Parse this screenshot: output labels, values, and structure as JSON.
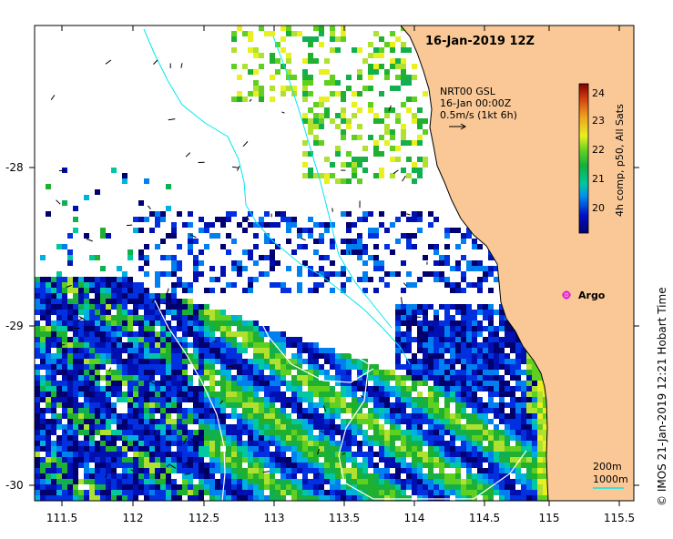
{
  "map": {
    "title": "16-Jan-2019 12Z",
    "current_annotation": {
      "line1": "NRT00 GSL",
      "line2": "16-Jan 00:00Z",
      "line3": "0.5m/s (1kt 6h)"
    },
    "colorbar": {
      "label": "4h comp, p50, All Sats",
      "ticks": [
        "20",
        "21",
        "22",
        "23",
        "24"
      ],
      "range": [
        19.4,
        24.3
      ]
    },
    "argo_label": "Argo",
    "depth_legend": {
      "line1": "200m",
      "line2": "1000m"
    },
    "credit": "© IMOS 21-Jan-2019 12:21 Hobart Time",
    "x_ticks": [
      "111.5",
      "112",
      "112.5",
      "113",
      "113.5",
      "114",
      "114.5",
      "115",
      "115.5"
    ],
    "y_ticks": [
      "-28",
      "-29",
      "-30"
    ],
    "colors": {
      "land": "#f9c896",
      "isobath_200": "#00e8f0",
      "isobath_1000": "#ffffff",
      "argo": "#e020e0"
    }
  }
}
